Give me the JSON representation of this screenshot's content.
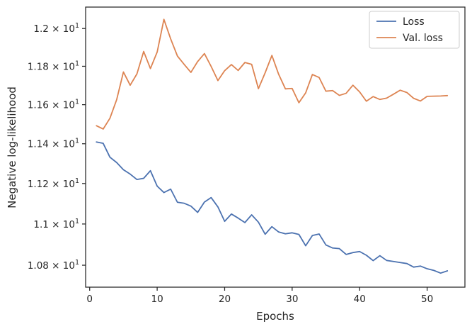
{
  "chart_data": {
    "type": "line",
    "xlabel": "Epochs",
    "ylabel": "Negative log-likelihood",
    "xlim": [
      -0.6,
      55.6
    ],
    "ylim": [
      10.695,
      12.115
    ],
    "yscale": "log",
    "grid": false,
    "legend_placement": "top-right",
    "x_ticks": [
      {
        "value": 0,
        "label": "0"
      },
      {
        "value": 10,
        "label": "10"
      },
      {
        "value": 20,
        "label": "20"
      },
      {
        "value": 30,
        "label": "30"
      },
      {
        "value": 40,
        "label": "40"
      },
      {
        "value": 50,
        "label": "50"
      }
    ],
    "y_ticks": [
      {
        "value": 10.8,
        "label": "1.08 × 10",
        "exp": "1"
      },
      {
        "value": 11.0,
        "label": "1.1 × 10",
        "exp": "1"
      },
      {
        "value": 11.2,
        "label": "1.12 × 10",
        "exp": "1"
      },
      {
        "value": 11.4,
        "label": "1.14 × 10",
        "exp": "1"
      },
      {
        "value": 11.6,
        "label": "1.16 × 10",
        "exp": "1"
      },
      {
        "value": 11.8,
        "label": "1.18 × 10",
        "exp": "1"
      },
      {
        "value": 12.0,
        "label": "1.2 × 10",
        "exp": "1"
      }
    ],
    "x": [
      1,
      2,
      3,
      4,
      5,
      6,
      7,
      8,
      9,
      10,
      11,
      12,
      13,
      14,
      15,
      16,
      17,
      18,
      19,
      20,
      21,
      22,
      23,
      24,
      25,
      26,
      27,
      28,
      29,
      30,
      31,
      32,
      33,
      34,
      35,
      36,
      37,
      38,
      39,
      40,
      41,
      42,
      43,
      44,
      45,
      46,
      47,
      48,
      49,
      50,
      51,
      52,
      53
    ],
    "series": [
      {
        "name": "Loss",
        "color": "#4c72b0",
        "values": [
          11.409,
          11.402,
          11.332,
          11.305,
          11.269,
          11.247,
          11.22,
          11.226,
          11.264,
          11.187,
          11.155,
          11.172,
          11.107,
          11.102,
          11.088,
          11.057,
          11.108,
          11.13,
          11.084,
          11.013,
          11.049,
          11.029,
          11.007,
          11.045,
          11.009,
          10.95,
          10.987,
          10.961,
          10.952,
          10.957,
          10.949,
          10.894,
          10.944,
          10.951,
          10.898,
          10.883,
          10.88,
          10.852,
          10.861,
          10.866,
          10.848,
          10.822,
          10.846,
          10.823,
          10.818,
          10.813,
          10.808,
          10.791,
          10.796,
          10.783,
          10.775,
          10.762,
          10.773
        ]
      },
      {
        "name": "Val. loss",
        "color": "#dd8452",
        "values": [
          11.492,
          11.475,
          11.53,
          11.626,
          11.77,
          11.701,
          11.76,
          11.878,
          11.788,
          11.875,
          12.049,
          11.945,
          11.854,
          11.81,
          11.768,
          11.825,
          11.867,
          11.799,
          11.725,
          11.777,
          11.809,
          11.778,
          11.82,
          11.81,
          11.683,
          11.766,
          11.857,
          11.758,
          11.682,
          11.684,
          11.61,
          11.661,
          11.757,
          11.741,
          11.67,
          11.673,
          11.648,
          11.659,
          11.701,
          11.666,
          11.618,
          11.642,
          11.627,
          11.634,
          11.654,
          11.675,
          11.663,
          11.633,
          11.619,
          11.643,
          11.644,
          11.645,
          11.647
        ]
      }
    ]
  }
}
